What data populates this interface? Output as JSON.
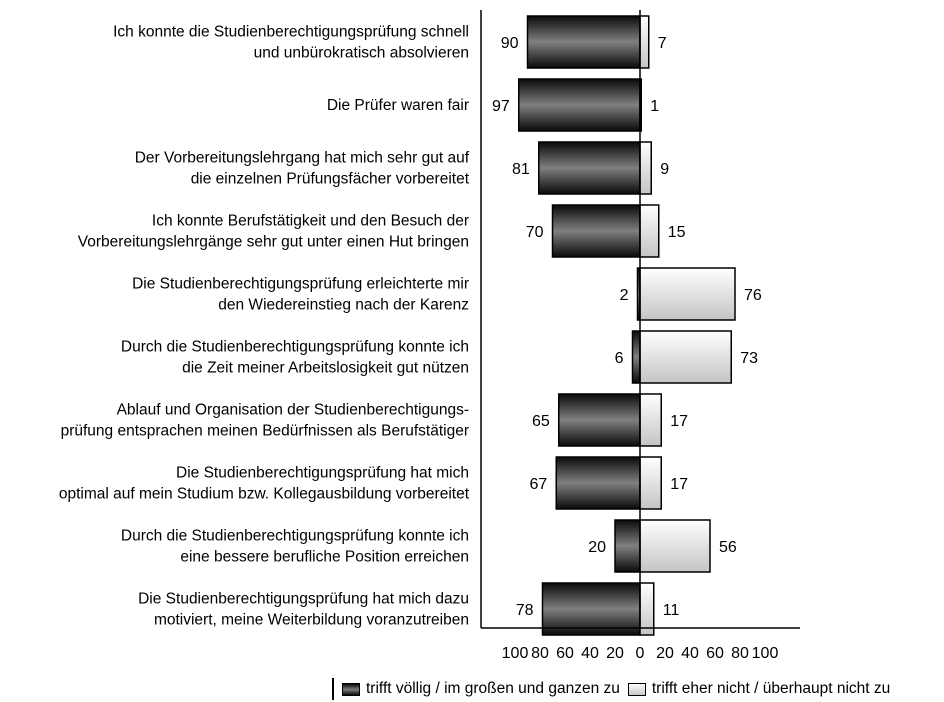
{
  "chart_data": {
    "type": "bar",
    "orientation": "horizontal-diverging",
    "categories": [
      [
        "Ich konnte die Studienberechtigungsprüfung schnell",
        "und unbürokratisch absolvieren"
      ],
      [
        "Die Prüfer waren fair"
      ],
      [
        "Der Vorbereitungslehrgang hat mich sehr gut auf",
        "die einzelnen Prüfungsfächer vorbereitet"
      ],
      [
        "Ich konnte Berufstätigkeit und den Besuch der",
        "Vorbereitungslehrgänge sehr gut unter einen Hut bringen"
      ],
      [
        "Die Studienberechtigungsprüfung erleichterte mir",
        "den Wiedereinstieg nach der Karenz"
      ],
      [
        "Durch die Studienberechtigungsprüfung konnte ich",
        "die Zeit meiner Arbeitslosigkeit gut nützen"
      ],
      [
        "Ablauf und Organisation der Studienberechtigungs-",
        "prüfung entsprachen meinen Bedürfnissen als Berufstätiger"
      ],
      [
        "Die Studienberechtigungsprüfung hat mich",
        "optimal auf mein Studium bzw. Kollegausbildung vorbereitet"
      ],
      [
        "Durch die Studienberechtigungsprüfung konnte ich",
        "eine bessere berufliche Position erreichen"
      ],
      [
        "Die Studienberechtigungsprüfung hat mich dazu",
        "motiviert, meine Weiterbildung voranzutreiben"
      ]
    ],
    "series": [
      {
        "name": "trifft völlig / im großen und ganzen zu",
        "direction": "left",
        "values": [
          90,
          97,
          81,
          70,
          2,
          6,
          65,
          67,
          20,
          78
        ]
      },
      {
        "name": "trifft eher nicht / überhaupt nicht zu",
        "direction": "right",
        "values": [
          7,
          1,
          9,
          15,
          76,
          73,
          17,
          17,
          56,
          11
        ]
      }
    ],
    "xticks": [
      "100",
      "80",
      "60",
      "40",
      "20",
      "0",
      "20",
      "40",
      "60",
      "80",
      "100"
    ],
    "xlim": [
      -100,
      100
    ],
    "legend_position": "bottom-right",
    "colors": {
      "dark": "#111111",
      "light": "#e4e4e4"
    }
  }
}
